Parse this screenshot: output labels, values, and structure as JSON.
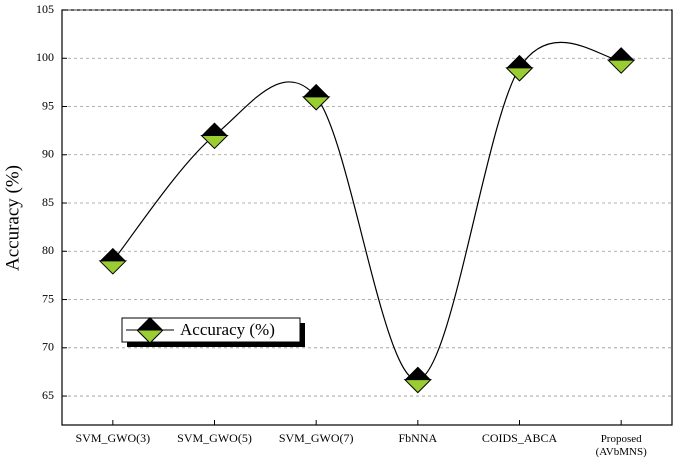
{
  "chart_data": {
    "type": "line",
    "y_label": "Accuracy (%)",
    "categories": [
      "SVM_GWO(3)",
      "SVM_GWO(5)",
      "SVM_GWO(7)",
      "FbNNA",
      "COIDS_ABCA",
      "Proposed (AVbMNS)"
    ],
    "series": [
      {
        "name": "Accuracy (%)",
        "color": "#000000",
        "marker_color": "#9acd32",
        "values": [
          79,
          92,
          96,
          66.7,
          99,
          99.8
        ]
      }
    ],
    "ylim": [
      62,
      105
    ],
    "yticks": [
      65,
      70,
      75,
      80,
      85,
      90,
      95,
      100,
      105
    ],
    "grid": true,
    "smooth": true,
    "legend": "lower-left"
  }
}
